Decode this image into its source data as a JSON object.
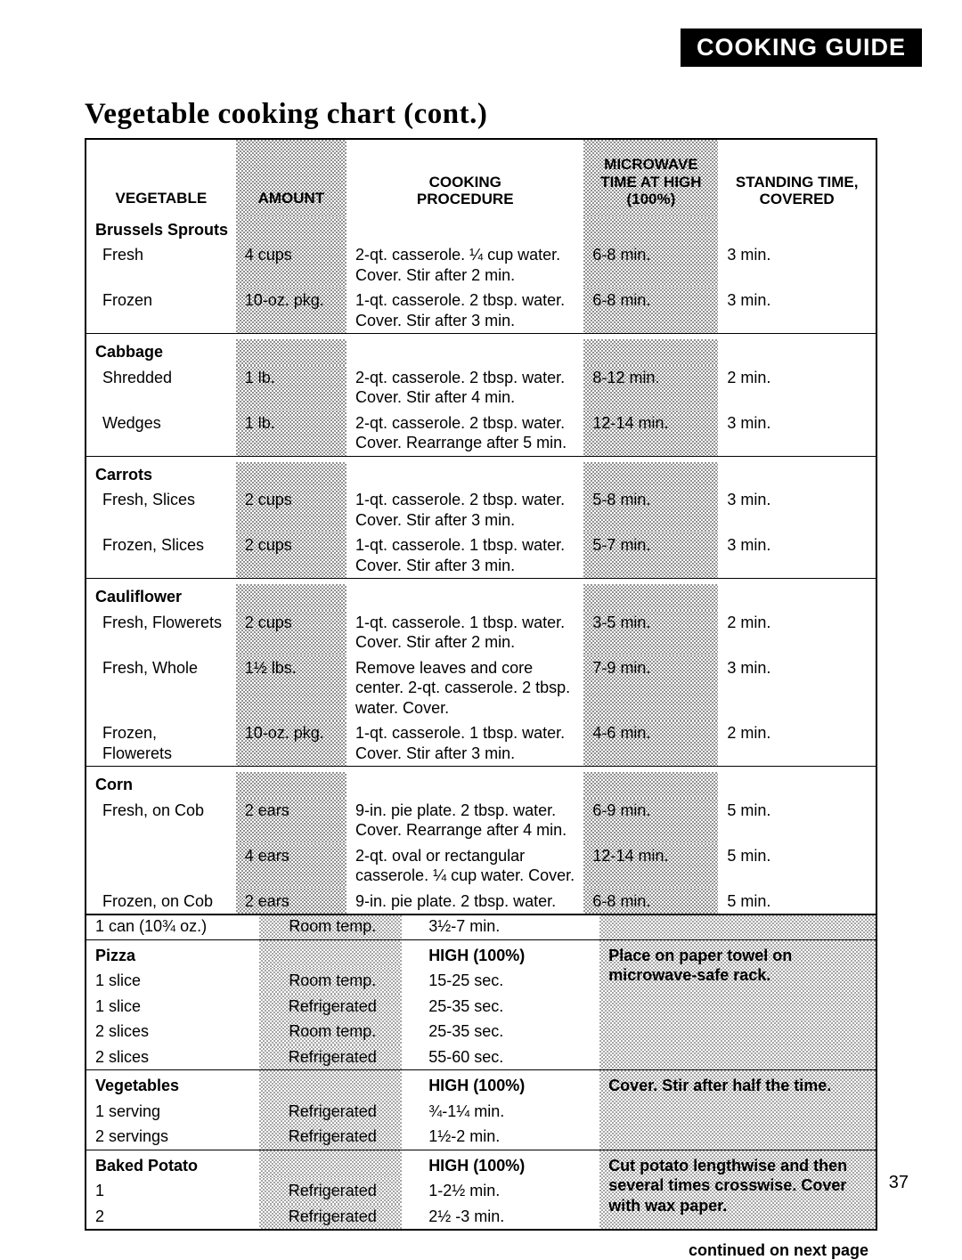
{
  "header_tab": "COOKING GUIDE",
  "title": "Vegetable cooking chart (cont.)",
  "vegtable": {
    "headers": {
      "vegetable": "VEGETABLE",
      "amount": "AMOUNT",
      "procedure_l1": "COOKING",
      "procedure_l2": "PROCEDURE",
      "time_l1": "MICROWAVE",
      "time_l2": "TIME AT HIGH",
      "time_l3": "(100%)",
      "standing_l1": "STANDING TIME,",
      "standing_l2": "COVERED"
    },
    "sections": [
      {
        "name": "Brussels Sprouts",
        "rows": [
          {
            "veg": "Fresh",
            "amt": "4 cups",
            "proc": "2-qt. casserole. ¼ cup water. Cover. Stir after 2 min.",
            "time": "6-8 min.",
            "stand": "3 min."
          },
          {
            "veg": "Frozen",
            "amt": "10-oz. pkg.",
            "proc": "1-qt. casserole. 2 tbsp. water. Cover. Stir after 3 min.",
            "time": "6-8 min.",
            "stand": "3 min."
          }
        ]
      },
      {
        "name": "Cabbage",
        "rows": [
          {
            "veg": "Shredded",
            "amt": "1 lb.",
            "proc": "2-qt. casserole. 2 tbsp. water. Cover. Stir after 4 min.",
            "time": "8-12 min.",
            "stand": "2 min."
          },
          {
            "veg": "Wedges",
            "amt": "1 lb.",
            "proc": "2-qt. casserole. 2 tbsp. water. Cover. Rearrange after 5 min.",
            "time": "12-14 min.",
            "stand": "3 min."
          }
        ]
      },
      {
        "name": "Carrots",
        "rows": [
          {
            "veg": "Fresh, Slices",
            "amt": "2 cups",
            "proc": "1-qt. casserole. 2 tbsp. water. Cover. Stir after 3 min.",
            "time": "5-8 min.",
            "stand": "3 min."
          },
          {
            "veg": "Frozen, Slices",
            "amt": "2 cups",
            "proc": "1-qt. casserole. 1 tbsp. water. Cover. Stir after 3 min.",
            "time": "5-7 min.",
            "stand": "3 min."
          }
        ]
      },
      {
        "name": "Cauliflower",
        "rows": [
          {
            "veg": "Fresh, Flowerets",
            "amt": "2 cups",
            "proc": "1-qt. casserole. 1 tbsp. water. Cover. Stir after 2 min.",
            "time": "3-5 min.",
            "stand": "2 min."
          },
          {
            "veg": "Fresh, Whole",
            "amt": "1½ lbs.",
            "proc": "Remove leaves and core center. 2-qt. casserole. 2 tbsp. water. Cover.",
            "time": "7-9 min.",
            "stand": "3 min."
          },
          {
            "veg": "Frozen, Flowerets",
            "amt": "10-oz. pkg.",
            "proc": "1-qt. casserole. 1 tbsp. water. Cover. Stir after 3 min.",
            "time": "4-6 min.",
            "stand": "2 min."
          }
        ]
      },
      {
        "name": "Corn",
        "rows": [
          {
            "veg": "Fresh, on Cob",
            "amt": "2 ears",
            "proc": "9-in. pie plate. 2 tbsp. water. Cover. Rearrange after 4 min.",
            "time": "6-9 min.",
            "stand": "5 min."
          },
          {
            "veg": "",
            "amt": "4 ears",
            "proc": "2-qt. oval or rectangular casserole. ¼ cup water. Cover.",
            "time": "12-14 min.",
            "stand": "5 min."
          },
          {
            "veg": "Frozen, on Cob",
            "amt": "2 ears",
            "proc": "9-in. pie plate. 2 tbsp. water.",
            "time": "6-8 min.",
            "stand": "5 min."
          }
        ]
      }
    ]
  },
  "lowtable": {
    "toprow": {
      "item": "1 can (10¾ oz.)",
      "temp": "Room temp.",
      "time": "3½-7 min.",
      "note": ""
    },
    "sections": [
      {
        "name": "Pizza",
        "power": "HIGH (100%)",
        "note": "Place on paper towel on microwave-safe rack.",
        "rows": [
          {
            "item": "1 slice",
            "temp": "Room temp.",
            "time": "15-25 sec."
          },
          {
            "item": "1 slice",
            "temp": "Refrigerated",
            "time": "25-35 sec."
          },
          {
            "item": "2 slices",
            "temp": "Room temp.",
            "time": "25-35 sec."
          },
          {
            "item": "2 slices",
            "temp": "Refrigerated",
            "time": "55-60 sec."
          }
        ]
      },
      {
        "name": "Vegetables",
        "power": "HIGH (100%)",
        "note": "Cover. Stir after half the time.",
        "rows": [
          {
            "item": "1 serving",
            "temp": "Refrigerated",
            "time": "¾-1¼ min."
          },
          {
            "item": "2 servings",
            "temp": "Refrigerated",
            "time": "1½-2 min."
          }
        ]
      },
      {
        "name": "Baked Potato",
        "power": "HIGH (100%)",
        "note": "Cut potato lengthwise and then several times crosswise. Cover with wax paper.",
        "rows": [
          {
            "item": "1",
            "temp": "Refrigerated",
            "time": "1-2½ min."
          },
          {
            "item": "2",
            "temp": "Refrigerated",
            "time": "2½ -3 min."
          }
        ]
      }
    ]
  },
  "footer": "continued on next page",
  "pagenum": "37"
}
